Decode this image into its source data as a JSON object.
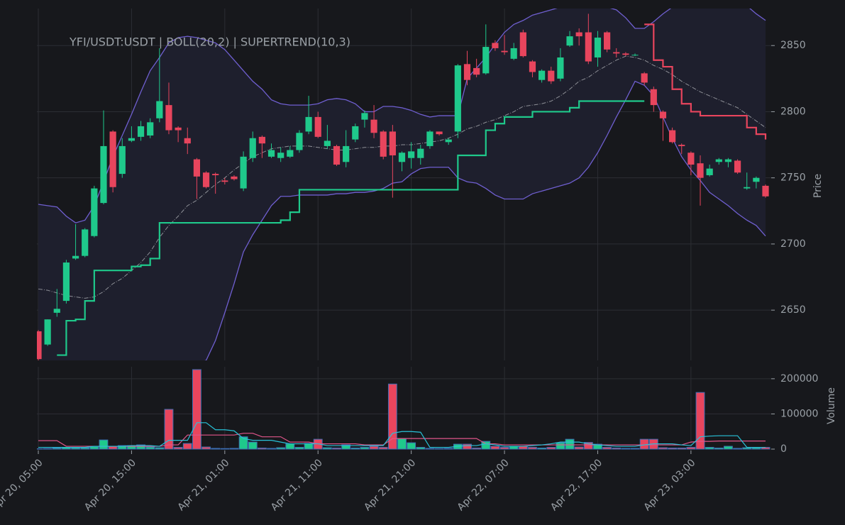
{
  "chart_data": [
    {
      "type": "candlestick",
      "title": "YFI/USDT:USDT | BOLL(20,2) | SUPERTREND(10,3)",
      "ylabel": "Price",
      "x": [
        "Apr 20, 05:00",
        "Apr 20, 06:00",
        "Apr 20, 07:00",
        "Apr 20, 08:00",
        "Apr 20, 09:00",
        "Apr 20, 10:00",
        "Apr 20, 11:00",
        "Apr 20, 12:00",
        "Apr 20, 13:00",
        "Apr 20, 14:00",
        "Apr 20, 15:00",
        "Apr 20, 16:00",
        "Apr 20, 17:00",
        "Apr 20, 18:00",
        "Apr 20, 19:00",
        "Apr 20, 20:00",
        "Apr 20, 21:00",
        "Apr 20, 22:00",
        "Apr 20, 23:00",
        "Apr 21, 00:00",
        "Apr 21, 01:00",
        "Apr 21, 02:00",
        "Apr 21, 03:00",
        "Apr 21, 04:00",
        "Apr 21, 05:00",
        "Apr 21, 06:00",
        "Apr 21, 07:00",
        "Apr 21, 08:00",
        "Apr 21, 09:00",
        "Apr 21, 10:00",
        "Apr 21, 11:00",
        "Apr 21, 12:00",
        "Apr 21, 13:00",
        "Apr 21, 14:00",
        "Apr 21, 15:00",
        "Apr 21, 16:00",
        "Apr 21, 17:00",
        "Apr 21, 18:00",
        "Apr 21, 19:00",
        "Apr 21, 20:00",
        "Apr 21, 21:00",
        "Apr 21, 22:00",
        "Apr 21, 23:00",
        "Apr 22, 00:00",
        "Apr 22, 01:00",
        "Apr 22, 02:00",
        "Apr 22, 03:00",
        "Apr 22, 04:00",
        "Apr 22, 05:00",
        "Apr 22, 06:00",
        "Apr 22, 07:00",
        "Apr 22, 08:00",
        "Apr 22, 09:00",
        "Apr 22, 10:00",
        "Apr 22, 11:00",
        "Apr 22, 12:00",
        "Apr 22, 13:00",
        "Apr 22, 14:00",
        "Apr 22, 15:00",
        "Apr 22, 16:00",
        "Apr 22, 17:00",
        "Apr 22, 18:00",
        "Apr 22, 19:00",
        "Apr 22, 20:00",
        "Apr 22, 21:00",
        "Apr 22, 22:00",
        "Apr 22, 23:00",
        "Apr 23, 00:00",
        "Apr 23, 01:00",
        "Apr 23, 02:00",
        "Apr 23, 03:00",
        "Apr 23, 04:00",
        "Apr 23, 05:00",
        "Apr 23, 06:00",
        "Apr 23, 07:00",
        "Apr 23, 08:00",
        "Apr 23, 09:00",
        "Apr 23, 10:00",
        "Apr 23, 11:00"
      ],
      "xticks": [
        "Apr 20, 05:00",
        "Apr 20, 15:00",
        "Apr 21, 01:00",
        "Apr 21, 11:00",
        "Apr 21, 21:00",
        "Apr 22, 07:00",
        "Apr 22, 17:00",
        "Apr 23, 03:00"
      ],
      "open": [
        2634,
        2624,
        2648,
        2657,
        2689,
        2691,
        2706,
        2731,
        2785,
        2753,
        2778,
        2781,
        2782,
        2795,
        2805,
        2788,
        2780,
        2764,
        2754,
        2753,
        2748,
        2751,
        2742,
        2765,
        2781,
        2766,
        2765,
        2766,
        2771,
        2785,
        2796,
        2774,
        2774,
        2762,
        2779,
        2794,
        2794,
        2785,
        2785,
        2762,
        2765,
        2765,
        2774,
        2785,
        2777,
        2785,
        2836,
        2833,
        2829,
        2852,
        2846,
        2840,
        2860,
        2838,
        2824,
        2831,
        2825,
        2850,
        2860,
        2860,
        2841,
        2860,
        2845,
        2844,
        2843,
        2829,
        2817,
        2800,
        2786,
        2775,
        2769,
        2761,
        2752,
        2762,
        2762,
        2763,
        2742,
        2747,
        2744
      ],
      "high": [
        2635,
        2643,
        2666,
        2688,
        2715,
        2712,
        2744,
        2801,
        2786,
        2780,
        2789,
        2793,
        2795,
        2848,
        2822,
        2789,
        2788,
        2765,
        2755,
        2754,
        2750,
        2752,
        2770,
        2785,
        2782,
        2776,
        2773,
        2774,
        2786,
        2812,
        2800,
        2790,
        2775,
        2786,
        2791,
        2801,
        2805,
        2786,
        2790,
        2770,
        2777,
        2775,
        2786,
        2785,
        2780,
        2836,
        2846,
        2840,
        2866,
        2854,
        2858,
        2852,
        2862,
        2839,
        2832,
        2834,
        2848,
        2861,
        2863,
        2874,
        2861,
        2861,
        2848,
        2845,
        2844,
        2830,
        2819,
        2801,
        2788,
        2776,
        2770,
        2767,
        2760,
        2765,
        2765,
        2764,
        2754,
        2751,
        2745
      ],
      "low": [
        2612,
        2623,
        2645,
        2655,
        2688,
        2690,
        2705,
        2730,
        2739,
        2750,
        2777,
        2778,
        2780,
        2792,
        2783,
        2777,
        2768,
        2734,
        2742,
        2738,
        2745,
        2748,
        2740,
        2762,
        2765,
        2765,
        2762,
        2765,
        2769,
        2783,
        2780,
        2772,
        2759,
        2758,
        2777,
        2788,
        2780,
        2764,
        2735,
        2755,
        2757,
        2760,
        2772,
        2782,
        2775,
        2780,
        2820,
        2826,
        2828,
        2846,
        2843,
        2839,
        2841,
        2826,
        2822,
        2821,
        2823,
        2849,
        2850,
        2836,
        2834,
        2845,
        2841,
        2842,
        2842,
        2820,
        2800,
        2778,
        2776,
        2768,
        2752,
        2729,
        2751,
        2760,
        2758,
        2753,
        2741,
        2742,
        2735
      ],
      "close": [
        2613,
        2643,
        2651,
        2686,
        2691,
        2711,
        2742,
        2774,
        2743,
        2774,
        2780,
        2789,
        2792,
        2808,
        2786,
        2786,
        2776,
        2751,
        2743,
        2752,
        2747,
        2749,
        2766,
        2780,
        2776,
        2771,
        2769,
        2771,
        2784,
        2796,
        2781,
        2778,
        2760,
        2774,
        2789,
        2799,
        2784,
        2766,
        2767,
        2769,
        2770,
        2772,
        2785,
        2783,
        2779,
        2835,
        2824,
        2828,
        2849,
        2848,
        2845,
        2848,
        2842,
        2830,
        2831,
        2823,
        2841,
        2857,
        2857,
        2838,
        2856,
        2847,
        2844,
        2843,
        2843,
        2822,
        2805,
        2795,
        2777,
        2774,
        2760,
        2750,
        2757,
        2764,
        2764,
        2754,
        2743,
        2750,
        2736
      ],
      "up_color": "#1fc98b",
      "down_color": "#e8455d",
      "bollinger": {
        "color": "#6f5fd0",
        "middle_color": "#8d8f96",
        "fill": "#1e1f2d",
        "upper": [
          2730,
          2729,
          2728,
          2721,
          2716,
          2718,
          2729,
          2747,
          2766,
          2782,
          2798,
          2815,
          2831,
          2841,
          2852,
          2856,
          2857,
          2856,
          2854,
          2852,
          2847,
          2839,
          2831,
          2823,
          2817,
          2809,
          2806,
          2805,
          2805,
          2805,
          2806,
          2809,
          2810,
          2809,
          2806,
          2800,
          2800,
          2804,
          2804,
          2803,
          2801,
          2798,
          2796,
          2797,
          2797,
          2797,
          2825,
          2833,
          2841,
          2851,
          2860,
          2866,
          2869,
          2873,
          2875,
          2877,
          2879,
          2882,
          2882,
          2882,
          2880,
          2879,
          2877,
          2871,
          2863,
          2863,
          2868,
          2874,
          2879,
          2882,
          2884,
          2886,
          2887,
          2887,
          2886,
          2885,
          2880,
          2874,
          2869
        ],
        "middle": [
          2666,
          2665,
          2663,
          2661,
          2660,
          2659,
          2660,
          2664,
          2670,
          2674,
          2680,
          2686,
          2694,
          2705,
          2714,
          2721,
          2729,
          2733,
          2739,
          2745,
          2750,
          2756,
          2761,
          2766,
          2769,
          2772,
          2773,
          2774,
          2774,
          2774,
          2773,
          2772,
          2771,
          2771,
          2772,
          2773,
          2773,
          2774,
          2774,
          2775,
          2775,
          2776,
          2777,
          2778,
          2780,
          2783,
          2787,
          2789,
          2792,
          2794,
          2797,
          2800,
          2804,
          2805,
          2806,
          2808,
          2812,
          2817,
          2823,
          2826,
          2831,
          2835,
          2839,
          2842,
          2841,
          2839,
          2835,
          2832,
          2828,
          2823,
          2819,
          2815,
          2812,
          2809,
          2806,
          2803,
          2798,
          2793,
          2788
        ],
        "lower": [
          2602,
          2601,
          2598,
          2601,
          2604,
          2600,
          2591,
          2581,
          2574,
          2566,
          2562,
          2557,
          2557,
          2569,
          2576,
          2586,
          2601,
          2610,
          2612,
          2627,
          2648,
          2670,
          2694,
          2707,
          2718,
          2729,
          2736,
          2736,
          2737,
          2737,
          2737,
          2737,
          2738,
          2738,
          2739,
          2739,
          2740,
          2742,
          2746,
          2747,
          2753,
          2757,
          2758,
          2758,
          2758,
          2750,
          2747,
          2746,
          2742,
          2737,
          2734,
          2734,
          2734,
          2738,
          2740,
          2742,
          2744,
          2746,
          2750,
          2758,
          2769,
          2782,
          2796,
          2809,
          2823,
          2820,
          2812,
          2796,
          2780,
          2766,
          2756,
          2748,
          2739,
          2734,
          2729,
          2723,
          2718,
          2714,
          2706
        ]
      },
      "supertrend": {
        "up_color": "#1fc98b",
        "down_color": "#e8455d",
        "up": [
          null,
          null,
          2616,
          2642,
          2643,
          2657,
          2680,
          2680,
          2680,
          2680,
          2683,
          2684,
          2689,
          2716,
          2716,
          2716,
          2716,
          2716,
          2716,
          2716,
          2716,
          2716,
          2716,
          2716,
          2716,
          2716,
          2718,
          2724,
          2741,
          2741,
          2741,
          2741,
          2741,
          2741,
          2741,
          2741,
          2741,
          2741,
          2741,
          2741,
          2741,
          2741,
          2741,
          2741,
          2741,
          2767,
          2767,
          2767,
          2786,
          2791,
          2796,
          2796,
          2796,
          2800,
          2800,
          2800,
          2800,
          2803,
          2808,
          2808,
          2808,
          2808,
          2808,
          2808,
          2808,
          2808,
          null,
          null,
          null,
          null,
          null,
          null,
          null,
          null,
          null,
          null,
          null,
          null,
          null
        ],
        "down": [
          null,
          null,
          null,
          null,
          null,
          null,
          null,
          null,
          null,
          null,
          null,
          null,
          null,
          null,
          null,
          null,
          null,
          null,
          null,
          null,
          null,
          null,
          null,
          null,
          null,
          null,
          null,
          null,
          null,
          null,
          null,
          null,
          null,
          null,
          null,
          null,
          null,
          null,
          null,
          null,
          null,
          null,
          null,
          null,
          null,
          null,
          null,
          null,
          null,
          null,
          null,
          null,
          null,
          null,
          null,
          null,
          null,
          null,
          null,
          null,
          null,
          null,
          null,
          null,
          null,
          2866,
          2839,
          2834,
          2817,
          2806,
          2800,
          2797,
          2797,
          2797,
          2797,
          2797,
          2788,
          2783,
          2779
        ]
      },
      "ylim": [
        2612,
        2878
      ],
      "yticks": [
        2650,
        2700,
        2750,
        2800,
        2850
      ],
      "grid": true
    },
    {
      "type": "bar",
      "ylabel": "Volume",
      "values": [
        1000,
        1500,
        3000,
        5000,
        4000,
        4000,
        7000,
        26000,
        8000,
        10000,
        10000,
        12000,
        6000,
        4000,
        113000,
        5000,
        16000,
        226000,
        6000,
        2000,
        1500,
        2000,
        35000,
        20000,
        3000,
        2000,
        4000,
        15000,
        5000,
        16000,
        28000,
        4000,
        3000,
        12000,
        3000,
        5000,
        8000,
        5000,
        185000,
        30000,
        18000,
        5000,
        2000,
        1500,
        2000,
        14000,
        14000,
        3000,
        22000,
        8000,
        5000,
        8000,
        8000,
        5000,
        3000,
        5000,
        18000,
        28000,
        6000,
        19000,
        14000,
        5000,
        3000,
        2000,
        2000,
        28000,
        28000,
        4000,
        3000,
        3000,
        5000,
        161000,
        5000,
        3000,
        8000,
        2000,
        4000,
        4000,
        5000
      ],
      "edge_color": "#3d6fb5",
      "series": [
        {
          "color": "#e0558a",
          "values": [
            24000,
            24000,
            24000,
            8000,
            8000,
            8000,
            8000,
            8000,
            8000,
            8000,
            8000,
            8000,
            8000,
            8000,
            12000,
            12000,
            40000,
            40000,
            40000,
            40000,
            40000,
            40000,
            45000,
            45000,
            35000,
            35000,
            35000,
            20000,
            20000,
            20000,
            15000,
            15000,
            15000,
            15000,
            15000,
            12000,
            12000,
            12000,
            30000,
            30000,
            30000,
            30000,
            30000,
            30000,
            30000,
            30000,
            30000,
            30000,
            15000,
            15000,
            12000,
            12000,
            12000,
            12000,
            12000,
            12000,
            12000,
            12000,
            12000,
            12000,
            12000,
            12000,
            12000,
            12000,
            12000,
            12000,
            12000,
            12000,
            12000,
            12000,
            20000,
            22000,
            22000,
            23000,
            23000,
            23000,
            23000,
            23000,
            23000
          ]
        },
        {
          "color": "#28c2d8",
          "values": [
            5000,
            5000,
            5000,
            5000,
            5000,
            5000,
            8000,
            8000,
            8000,
            8000,
            10000,
            10000,
            10000,
            8000,
            25000,
            25000,
            25000,
            75000,
            75000,
            55000,
            55000,
            52000,
            30000,
            25000,
            25000,
            25000,
            20000,
            15000,
            15000,
            15000,
            15000,
            10000,
            10000,
            10000,
            10000,
            10000,
            10000,
            10000,
            45000,
            50000,
            50000,
            48000,
            5000,
            5000,
            5000,
            8000,
            10000,
            10000,
            15000,
            12000,
            8000,
            8000,
            8000,
            10000,
            12000,
            15000,
            20000,
            20000,
            20000,
            15000,
            12000,
            10000,
            8000,
            8000,
            8000,
            12000,
            15000,
            15000,
            15000,
            12000,
            10000,
            35000,
            37000,
            38000,
            38000,
            38000,
            5000,
            5000,
            5000
          ]
        }
      ],
      "ylim": [
        -4000,
        234000
      ],
      "yticks": [
        0,
        100000,
        200000
      ],
      "grid": true
    }
  ]
}
